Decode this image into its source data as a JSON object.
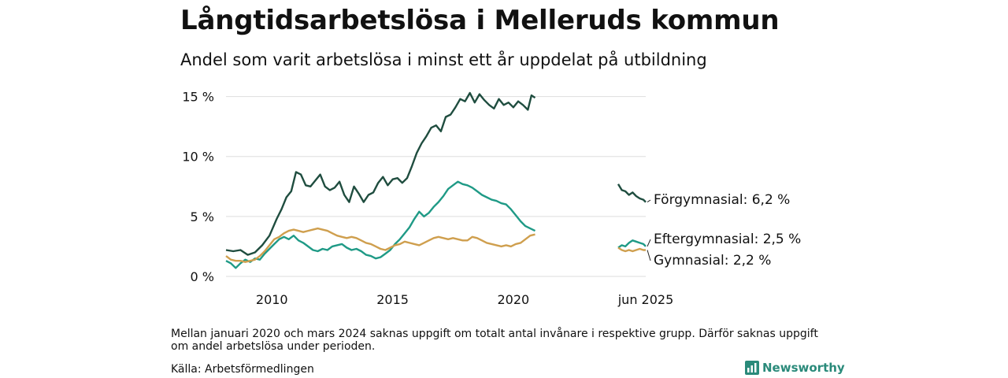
{
  "title": "Långtidsarbetslösa i Melleruds kommun",
  "subtitle": "Andel som varit arbetslösa i minst ett år uppdelat på utbildning",
  "note": "Mellan januari 2020 och mars 2024 saknas uppgift om totalt antal invånare i respektive grupp. Därför saknas uppgift om andel arbetslösa under perioden.",
  "source": "Källa: Arbetsförmedlingen",
  "brand": "Newsworthy",
  "colors": {
    "forgymnasial": "#1f4d3f",
    "eftergymnasial": "#1f9a86",
    "gymnasial": "#cf9f4e",
    "grid": "#dddddd",
    "brand": "#2a8a7a"
  },
  "chart_data": {
    "type": "line",
    "ylim": [
      0,
      15.5
    ],
    "y_ticks": [
      0,
      5,
      10,
      15
    ],
    "y_tick_labels": [
      "0 %",
      "5 %",
      "10 %",
      "15 %"
    ],
    "x_ticks": [
      2010,
      2015,
      2020,
      2025.4
    ],
    "x_tick_labels": [
      "2010",
      "2015",
      "2020",
      "jun 2025"
    ],
    "xlim": [
      2008.1,
      2025.4
    ],
    "gap": [
      2020.95,
      2024.25
    ],
    "grid": true,
    "series": [
      {
        "name": "Förgymnasial",
        "end_label": "Förgymnasial: 6,2 %",
        "color": "#1f4d3f",
        "segments": [
          [
            [
              2008.1,
              2.2
            ],
            [
              2008.4,
              2.1
            ],
            [
              2008.7,
              2.2
            ],
            [
              2009.0,
              1.8
            ],
            [
              2009.3,
              2.0
            ],
            [
              2009.6,
              2.6
            ],
            [
              2009.9,
              3.4
            ],
            [
              2010.2,
              4.8
            ],
            [
              2010.4,
              5.6
            ],
            [
              2010.6,
              6.6
            ],
            [
              2010.8,
              7.1
            ],
            [
              2011.0,
              8.7
            ],
            [
              2011.2,
              8.5
            ],
            [
              2011.4,
              7.6
            ],
            [
              2011.6,
              7.5
            ],
            [
              2011.8,
              8.0
            ],
            [
              2012.0,
              8.5
            ],
            [
              2012.2,
              7.5
            ],
            [
              2012.4,
              7.2
            ],
            [
              2012.6,
              7.4
            ],
            [
              2012.8,
              7.9
            ],
            [
              2013.0,
              6.8
            ],
            [
              2013.2,
              6.2
            ],
            [
              2013.4,
              7.5
            ],
            [
              2013.6,
              6.9
            ],
            [
              2013.8,
              6.2
            ],
            [
              2014.0,
              6.8
            ],
            [
              2014.2,
              7.0
            ],
            [
              2014.4,
              7.8
            ],
            [
              2014.6,
              8.3
            ],
            [
              2014.8,
              7.6
            ],
            [
              2015.0,
              8.1
            ],
            [
              2015.2,
              8.2
            ],
            [
              2015.4,
              7.8
            ],
            [
              2015.6,
              8.2
            ],
            [
              2015.8,
              9.2
            ],
            [
              2016.0,
              10.3
            ],
            [
              2016.2,
              11.1
            ],
            [
              2016.4,
              11.7
            ],
            [
              2016.6,
              12.4
            ],
            [
              2016.8,
              12.6
            ],
            [
              2017.0,
              12.1
            ],
            [
              2017.2,
              13.3
            ],
            [
              2017.4,
              13.5
            ],
            [
              2017.6,
              14.1
            ],
            [
              2017.8,
              14.8
            ],
            [
              2018.0,
              14.6
            ],
            [
              2018.2,
              15.3
            ],
            [
              2018.4,
              14.5
            ],
            [
              2018.6,
              15.2
            ],
            [
              2018.8,
              14.7
            ],
            [
              2019.0,
              14.3
            ],
            [
              2019.2,
              14.0
            ],
            [
              2019.4,
              14.8
            ],
            [
              2019.6,
              14.3
            ],
            [
              2019.8,
              14.5
            ],
            [
              2020.0,
              14.1
            ],
            [
              2020.2,
              14.6
            ],
            [
              2020.4,
              14.3
            ],
            [
              2020.6,
              13.9
            ],
            [
              2020.75,
              15.1
            ],
            [
              2020.9,
              14.9
            ]
          ],
          [
            [
              2024.25,
              7.7
            ],
            [
              2024.4,
              7.2
            ],
            [
              2024.55,
              7.1
            ],
            [
              2024.7,
              6.8
            ],
            [
              2024.85,
              7.0
            ],
            [
              2025.0,
              6.7
            ],
            [
              2025.15,
              6.5
            ],
            [
              2025.3,
              6.4
            ],
            [
              2025.4,
              6.2
            ]
          ]
        ]
      },
      {
        "name": "Eftergymnasial",
        "end_label": "Eftergymnasial: 2,5 %",
        "color": "#1f9a86",
        "segments": [
          [
            [
              2008.1,
              1.3
            ],
            [
              2008.3,
              1.1
            ],
            [
              2008.5,
              0.7
            ],
            [
              2008.7,
              1.1
            ],
            [
              2008.9,
              1.4
            ],
            [
              2009.1,
              1.2
            ],
            [
              2009.3,
              1.5
            ],
            [
              2009.5,
              1.4
            ],
            [
              2009.7,
              1.9
            ],
            [
              2009.9,
              2.3
            ],
            [
              2010.1,
              2.7
            ],
            [
              2010.3,
              3.1
            ],
            [
              2010.5,
              3.3
            ],
            [
              2010.7,
              3.1
            ],
            [
              2010.9,
              3.4
            ],
            [
              2011.1,
              3.0
            ],
            [
              2011.3,
              2.8
            ],
            [
              2011.5,
              2.5
            ],
            [
              2011.7,
              2.2
            ],
            [
              2011.9,
              2.1
            ],
            [
              2012.1,
              2.3
            ],
            [
              2012.3,
              2.2
            ],
            [
              2012.5,
              2.5
            ],
            [
              2012.7,
              2.6
            ],
            [
              2012.9,
              2.7
            ],
            [
              2013.1,
              2.4
            ],
            [
              2013.3,
              2.2
            ],
            [
              2013.5,
              2.3
            ],
            [
              2013.7,
              2.1
            ],
            [
              2013.9,
              1.8
            ],
            [
              2014.1,
              1.7
            ],
            [
              2014.3,
              1.5
            ],
            [
              2014.5,
              1.6
            ],
            [
              2014.7,
              1.9
            ],
            [
              2014.9,
              2.2
            ],
            [
              2015.1,
              2.7
            ],
            [
              2015.3,
              3.1
            ],
            [
              2015.5,
              3.6
            ],
            [
              2015.7,
              4.1
            ],
            [
              2015.9,
              4.8
            ],
            [
              2016.1,
              5.4
            ],
            [
              2016.3,
              5.0
            ],
            [
              2016.5,
              5.3
            ],
            [
              2016.7,
              5.8
            ],
            [
              2016.9,
              6.2
            ],
            [
              2017.1,
              6.7
            ],
            [
              2017.3,
              7.3
            ],
            [
              2017.5,
              7.6
            ],
            [
              2017.7,
              7.9
            ],
            [
              2017.9,
              7.7
            ],
            [
              2018.1,
              7.6
            ],
            [
              2018.3,
              7.4
            ],
            [
              2018.5,
              7.1
            ],
            [
              2018.7,
              6.8
            ],
            [
              2018.9,
              6.6
            ],
            [
              2019.1,
              6.4
            ],
            [
              2019.3,
              6.3
            ],
            [
              2019.5,
              6.1
            ],
            [
              2019.7,
              6.0
            ],
            [
              2019.9,
              5.6
            ],
            [
              2020.1,
              5.1
            ],
            [
              2020.3,
              4.6
            ],
            [
              2020.5,
              4.2
            ],
            [
              2020.7,
              4.0
            ],
            [
              2020.9,
              3.8
            ]
          ],
          [
            [
              2024.25,
              2.4
            ],
            [
              2024.4,
              2.6
            ],
            [
              2024.55,
              2.5
            ],
            [
              2024.7,
              2.8
            ],
            [
              2024.85,
              3.0
            ],
            [
              2025.0,
              2.9
            ],
            [
              2025.15,
              2.8
            ],
            [
              2025.3,
              2.7
            ],
            [
              2025.4,
              2.5
            ]
          ]
        ]
      },
      {
        "name": "Gymnasial",
        "end_label": "Gymnasial: 2,2 %",
        "color": "#cf9f4e",
        "segments": [
          [
            [
              2008.1,
              1.7
            ],
            [
              2008.3,
              1.4
            ],
            [
              2008.5,
              1.3
            ],
            [
              2008.7,
              1.3
            ],
            [
              2008.9,
              1.2
            ],
            [
              2009.1,
              1.3
            ],
            [
              2009.3,
              1.4
            ],
            [
              2009.5,
              1.7
            ],
            [
              2009.7,
              2.1
            ],
            [
              2009.9,
              2.6
            ],
            [
              2010.1,
              3.1
            ],
            [
              2010.3,
              3.3
            ],
            [
              2010.5,
              3.6
            ],
            [
              2010.7,
              3.8
            ],
            [
              2010.9,
              3.9
            ],
            [
              2011.1,
              3.8
            ],
            [
              2011.3,
              3.7
            ],
            [
              2011.5,
              3.8
            ],
            [
              2011.7,
              3.9
            ],
            [
              2011.9,
              4.0
            ],
            [
              2012.1,
              3.9
            ],
            [
              2012.3,
              3.8
            ],
            [
              2012.5,
              3.6
            ],
            [
              2012.7,
              3.4
            ],
            [
              2012.9,
              3.3
            ],
            [
              2013.1,
              3.2
            ],
            [
              2013.3,
              3.3
            ],
            [
              2013.5,
              3.2
            ],
            [
              2013.7,
              3.0
            ],
            [
              2013.9,
              2.8
            ],
            [
              2014.1,
              2.7
            ],
            [
              2014.3,
              2.5
            ],
            [
              2014.5,
              2.3
            ],
            [
              2014.7,
              2.2
            ],
            [
              2014.9,
              2.4
            ],
            [
              2015.1,
              2.6
            ],
            [
              2015.3,
              2.7
            ],
            [
              2015.5,
              2.9
            ],
            [
              2015.7,
              2.8
            ],
            [
              2015.9,
              2.7
            ],
            [
              2016.1,
              2.6
            ],
            [
              2016.3,
              2.8
            ],
            [
              2016.5,
              3.0
            ],
            [
              2016.7,
              3.2
            ],
            [
              2016.9,
              3.3
            ],
            [
              2017.1,
              3.2
            ],
            [
              2017.3,
              3.1
            ],
            [
              2017.5,
              3.2
            ],
            [
              2017.7,
              3.1
            ],
            [
              2017.9,
              3.0
            ],
            [
              2018.1,
              3.0
            ],
            [
              2018.3,
              3.3
            ],
            [
              2018.5,
              3.2
            ],
            [
              2018.7,
              3.0
            ],
            [
              2018.9,
              2.8
            ],
            [
              2019.1,
              2.7
            ],
            [
              2019.3,
              2.6
            ],
            [
              2019.5,
              2.5
            ],
            [
              2019.7,
              2.6
            ],
            [
              2019.9,
              2.5
            ],
            [
              2020.1,
              2.7
            ],
            [
              2020.3,
              2.8
            ],
            [
              2020.5,
              3.1
            ],
            [
              2020.7,
              3.4
            ],
            [
              2020.9,
              3.5
            ]
          ],
          [
            [
              2024.25,
              2.4
            ],
            [
              2024.4,
              2.2
            ],
            [
              2024.55,
              2.1
            ],
            [
              2024.7,
              2.2
            ],
            [
              2024.85,
              2.1
            ],
            [
              2025.0,
              2.2
            ],
            [
              2025.15,
              2.3
            ],
            [
              2025.3,
              2.2
            ],
            [
              2025.4,
              2.2
            ]
          ]
        ]
      }
    ]
  }
}
